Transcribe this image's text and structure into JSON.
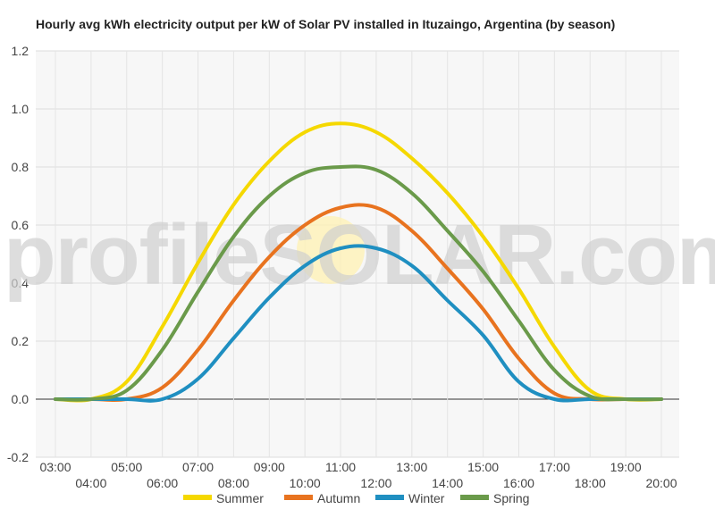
{
  "chart_data": {
    "type": "line",
    "title": "Hourly avg kWh electricity output per kW of Solar PV installed in Ituzaingo, Argentina (by season)",
    "xlabel": "",
    "ylabel": "",
    "ylim": [
      -0.2,
      1.2
    ],
    "yticks": [
      "-0.2",
      "0.0",
      "0.2",
      "0.4",
      "0.6",
      "0.8",
      "1.0",
      "1.2"
    ],
    "categories": [
      "03:00",
      "04:00",
      "05:00",
      "06:00",
      "07:00",
      "08:00",
      "09:00",
      "10:00",
      "11:00",
      "12:00",
      "13:00",
      "14:00",
      "15:00",
      "16:00",
      "17:00",
      "18:00",
      "19:00",
      "20:00"
    ],
    "grid": true,
    "legend_position": "bottom",
    "watermark": "profileSOLAR.com",
    "series": [
      {
        "name": "Summer",
        "color": "#f5d800",
        "values": [
          0.0,
          0.0,
          0.06,
          0.25,
          0.47,
          0.67,
          0.82,
          0.92,
          0.95,
          0.92,
          0.83,
          0.71,
          0.56,
          0.38,
          0.18,
          0.03,
          0.0,
          0.0
        ]
      },
      {
        "name": "Autumn",
        "color": "#e8731f",
        "values": [
          0.0,
          0.0,
          0.0,
          0.04,
          0.17,
          0.34,
          0.49,
          0.6,
          0.66,
          0.66,
          0.58,
          0.45,
          0.31,
          0.14,
          0.02,
          0.0,
          0.0,
          0.0
        ]
      },
      {
        "name": "Winter",
        "color": "#1f8fc1",
        "values": [
          0.0,
          0.0,
          0.0,
          0.0,
          0.07,
          0.21,
          0.35,
          0.46,
          0.52,
          0.52,
          0.46,
          0.34,
          0.22,
          0.06,
          0.0,
          0.0,
          0.0,
          0.0
        ]
      },
      {
        "name": "Spring",
        "color": "#6a9a4a",
        "values": [
          0.0,
          0.0,
          0.03,
          0.17,
          0.37,
          0.56,
          0.7,
          0.78,
          0.8,
          0.79,
          0.71,
          0.58,
          0.44,
          0.27,
          0.1,
          0.01,
          0.0,
          0.0
        ]
      }
    ]
  }
}
